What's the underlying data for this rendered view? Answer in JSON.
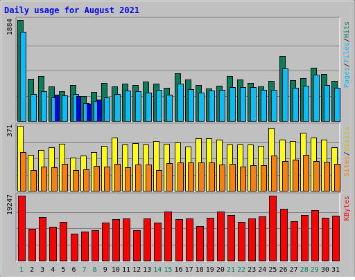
{
  "colors": {
    "background": "#c0c0c0",
    "hits": "#00805c",
    "files": "#00c0ff",
    "pages": "#0000ff",
    "visits": "#ffff00",
    "sites": "#ff8000",
    "kbytes": "#ff0000",
    "title": "#0000ff",
    "weekend_day": "#00805c"
  },
  "chart_data": {
    "type": "bar",
    "title": "Daily usage for August 2021",
    "categories": [
      "1",
      "2",
      "3",
      "4",
      "5",
      "6",
      "7",
      "8",
      "9",
      "10",
      "11",
      "12",
      "13",
      "14",
      "15",
      "16",
      "17",
      "18",
      "19",
      "20",
      "21",
      "22",
      "23",
      "24",
      "25",
      "26",
      "27",
      "28",
      "29",
      "30",
      "31"
    ],
    "weekend_days": [
      "1",
      "7",
      "8",
      "14",
      "15",
      "21",
      "22",
      "28",
      "29"
    ],
    "panels": [
      {
        "name": "hits-files-pages",
        "max_label": "1884",
        "ylim": [
          0,
          1884
        ],
        "side_labels": [
          {
            "text": "Hits",
            "color": "#00805c"
          },
          {
            "text": "/",
            "color": "#000000"
          },
          {
            "text": "Files",
            "color": "#00c0ff"
          },
          {
            "text": "/",
            "color": "#000000"
          },
          {
            "text": "Pages",
            "color": "#00c0ff"
          }
        ],
        "series": [
          {
            "name": "Hits",
            "color": "#00805c",
            "values": [
              1884,
              790,
              840,
              650,
              560,
              665,
              470,
              540,
              705,
              640,
              695,
              675,
              735,
              695,
              620,
              890,
              770,
              675,
              605,
              655,
              835,
              780,
              710,
              645,
              745,
              1215,
              755,
              795,
              1000,
              880,
              750
            ]
          },
          {
            "name": "Files",
            "color": "#00c0ff",
            "values": [
              1664,
              505,
              560,
              435,
              480,
              500,
              340,
              375,
              440,
              500,
              570,
              555,
              525,
              580,
              490,
              700,
              595,
              535,
              570,
              585,
              630,
              635,
              630,
              575,
              575,
              975,
              615,
              655,
              865,
              665,
              620
            ]
          },
          {
            "name": "Pages",
            "color": "#0000ff",
            "values": [
              0,
              0,
              0,
              485,
              0,
              470,
              320,
              400,
              0,
              0,
              0,
              0,
              0,
              0,
              0,
              0,
              0,
              0,
              0,
              0,
              0,
              0,
              0,
              0,
              0,
              0,
              0,
              0,
              0,
              0,
              0
            ]
          }
        ]
      },
      {
        "name": "visits-sites",
        "max_label": "371",
        "ylim": [
          0,
          371
        ],
        "side_labels": [
          {
            "text": "Visits",
            "color": "#c0c000"
          },
          {
            "text": "/",
            "color": "#000000"
          },
          {
            "text": "Sites",
            "color": "#ff8000"
          }
        ],
        "series": [
          {
            "name": "Visits",
            "color": "#ffff00",
            "values": [
              371,
              205,
              232,
              247,
              270,
              190,
              200,
              220,
              257,
              303,
              265,
              273,
              263,
              283,
              267,
              275,
              253,
              298,
              298,
              293,
              265,
              265,
              265,
              257,
              358,
              292,
              283,
              333,
              303,
              293,
              250
            ]
          },
          {
            "name": "Sites",
            "color": "#ff8000",
            "values": [
              220,
              120,
              140,
              133,
              152,
              117,
              122,
              141,
              137,
              155,
              135,
              150,
              150,
              120,
              158,
              160,
              163,
              160,
              163,
              150,
              153,
              140,
              147,
              147,
              202,
              171,
              176,
              207,
              170,
              167,
              152
            ]
          }
        ]
      },
      {
        "name": "kbytes",
        "max_label": "19247",
        "ylim": [
          0,
          19247
        ],
        "side_labels": [
          {
            "text": "KBytes",
            "color": "#ff0000"
          }
        ],
        "series": [
          {
            "name": "KBytes",
            "color": "#ff0000",
            "values": [
              19247,
              9380,
              12950,
              10130,
              11370,
              8020,
              8510,
              8980,
              11240,
              12280,
              12480,
              8920,
              12550,
              11230,
              14520,
              12310,
              12430,
              10310,
              12700,
              14590,
              13570,
              11400,
              12550,
              13030,
              19200,
              15450,
              11720,
              13420,
              15010,
              12790,
              13220
            ]
          }
        ]
      }
    ]
  }
}
